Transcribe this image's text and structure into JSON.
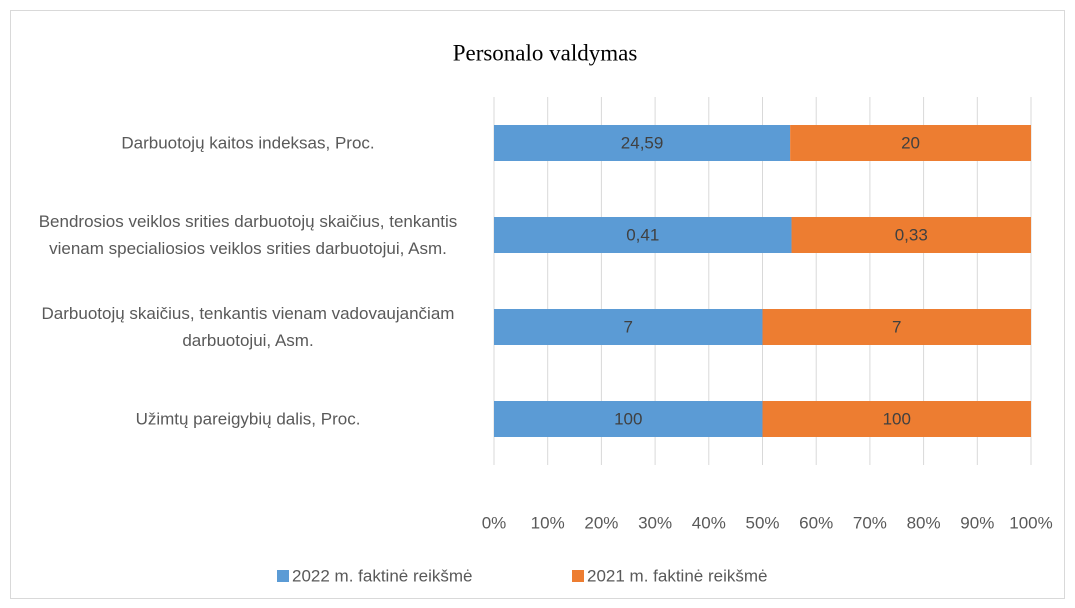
{
  "chart_data": {
    "type": "bar",
    "orientation": "horizontal",
    "stacked": "percent",
    "title": "Personalo valdymas",
    "categories": [
      "Darbuotojų kaitos indeksas, Proc.",
      "Bendrosios veiklos srities darbuotojų skaičius, tenkantis vienam specialiosios veiklos srities darbuotojui, Asm.",
      "Darbuotojų skaičius, tenkantis vienam vadovaujančiam darbuotojui, Asm.",
      "Užimtų pareigybių dalis, Proc."
    ],
    "series": [
      {
        "name": "2022 m. faktinė reikšmė",
        "color": "#5b9bd5",
        "values": [
          24.59,
          0.41,
          7,
          100
        ],
        "value_labels": [
          "24,59",
          "0,41",
          "7",
          "100"
        ]
      },
      {
        "name": "2021 m. faktinė reikšmė",
        "color": "#ed7d31",
        "values": [
          20,
          0.33,
          7,
          100
        ],
        "value_labels": [
          "20",
          "0,33",
          "7",
          "100"
        ]
      }
    ],
    "xlim": [
      0,
      100
    ],
    "xticks": [
      {
        "value": 0,
        "label": "0%"
      },
      {
        "value": 10,
        "label": "10%"
      },
      {
        "value": 20,
        "label": "20%"
      },
      {
        "value": 30,
        "label": "30%"
      },
      {
        "value": 40,
        "label": "40%"
      },
      {
        "value": 50,
        "label": "50%"
      },
      {
        "value": 60,
        "label": "60%"
      },
      {
        "value": 70,
        "label": "70%"
      },
      {
        "value": 80,
        "label": "80%"
      },
      {
        "value": 90,
        "label": "90%"
      },
      {
        "value": 100,
        "label": "100%"
      }
    ],
    "grid": true,
    "legend": "bottom"
  }
}
